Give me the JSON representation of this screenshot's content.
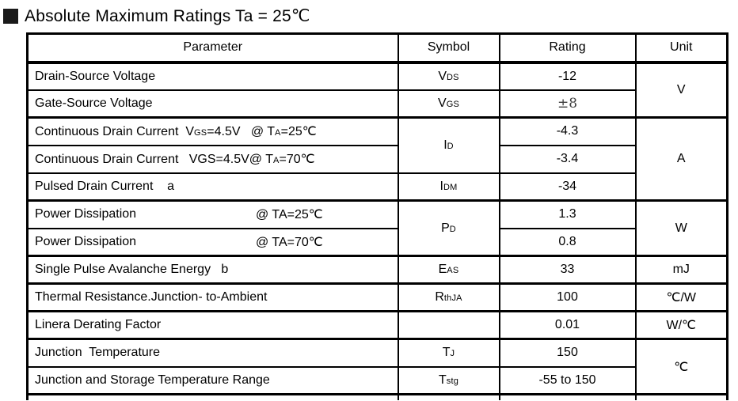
{
  "title": {
    "text": "Absolute Maximum Ratings Ta = 25℃"
  },
  "table": {
    "headers": {
      "parameter": "Parameter",
      "symbol": "Symbol",
      "rating": "Rating",
      "unit": "Unit"
    },
    "rows": [
      {
        "param": "Drain-Source Voltage",
        "sym": "V",
        "sym_sub": "DS",
        "rating": "-12",
        "unit": "V"
      },
      {
        "param": "Gate-Source Voltage",
        "sym": "V",
        "sym_sub": "GS",
        "rating": "±8"
      },
      {
        "param_pre": "Continuous Drain Current  V",
        "param_sub1": "GS",
        "param_mid": "=4.5V   @ T",
        "param_sub2": "A",
        "param_end": "=25℃",
        "sym": "I",
        "sym_sub": "D",
        "rating": "-4.3",
        "unit": "A"
      },
      {
        "param_pre": "Continuous Drain Current   VGS=4.5V@ T",
        "param_sub1": "A",
        "param_end": "=70℃",
        "rating": "-3.4"
      },
      {
        "param": "Pulsed Drain Current    a",
        "sym": "I",
        "sym_sub": "DM",
        "rating": "-34"
      },
      {
        "param": "Power Dissipation",
        "param_cond": "@ TA=25℃",
        "sym": "P",
        "sym_sub": "D",
        "rating": "1.3",
        "unit": "W"
      },
      {
        "param": "Power Dissipation",
        "param_cond": "@ TA=70℃",
        "rating": "0.8"
      },
      {
        "param": "Single Pulse Avalanche Energy   b",
        "sym": "E",
        "sym_sub": "AS",
        "rating": "33",
        "unit": "mJ"
      },
      {
        "param": "Thermal Resistance.Junction- to-Ambient",
        "sym": "R",
        "sym_sub": "thJA",
        "rating": "100",
        "unit": "℃/W"
      },
      {
        "param": "Linera Derating Factor",
        "rating": "0.01",
        "unit": "W/℃"
      },
      {
        "param": "Junction  Temperature",
        "sym": "T",
        "sym_sub": "J",
        "rating": "150",
        "unit": "℃"
      },
      {
        "param": "Junction and Storage Temperature Range",
        "sym": "T",
        "sym_sub": "stg",
        "rating": "-55 to 150"
      }
    ]
  }
}
